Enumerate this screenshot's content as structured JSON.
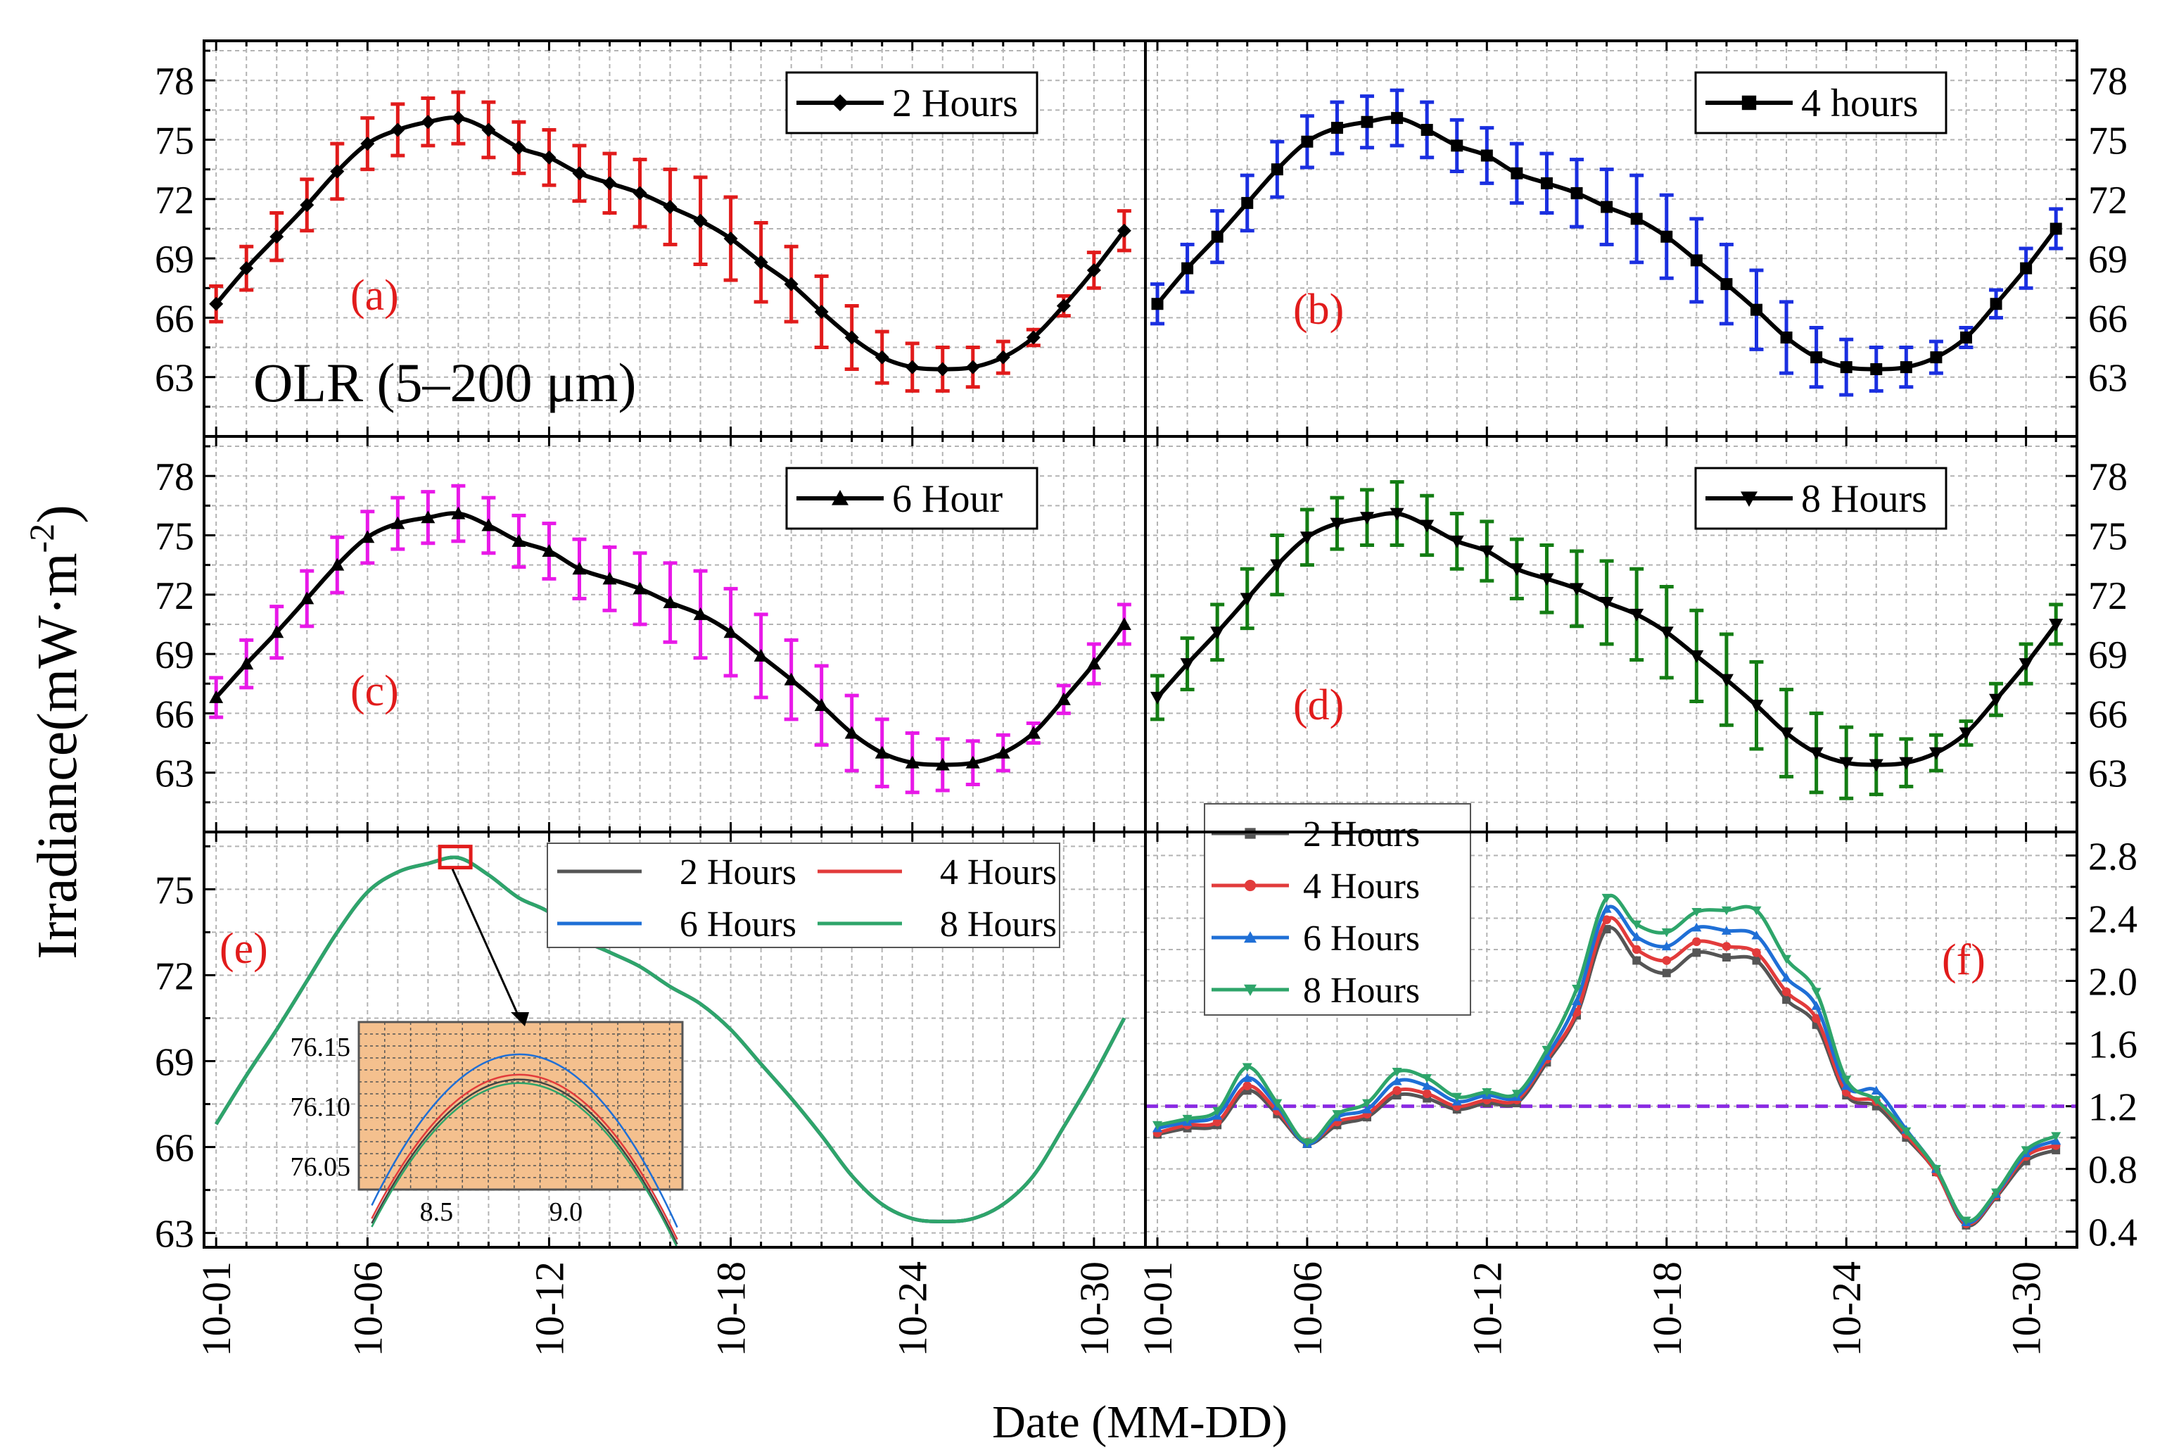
{
  "figure": {
    "ylabel": "Irradiance(mW·m",
    "ylabel_sup": "-2",
    "ylabel_close": ")",
    "xlabel": "Date (MM-DD)",
    "olr_label": "OLR (5–200 μm)",
    "x_ticks": [
      "10-01",
      "10-06",
      "10-12",
      "10-18",
      "10-24",
      "10-30"
    ]
  },
  "chart_data": [
    {
      "panel": "a",
      "type": "line",
      "panel_label": "(a)",
      "legend": "2 Hours",
      "marker": "diamond",
      "errorbar_color": "#e11b1b",
      "line_color": "#000000",
      "ylim": [
        60,
        80
      ],
      "yticks": [
        63,
        66,
        69,
        72,
        75,
        78
      ],
      "axis_side": "left",
      "x_days": [
        1,
        2,
        3,
        4,
        5,
        6,
        7,
        8,
        9,
        10,
        11,
        12,
        13,
        14,
        15,
        16,
        17,
        18,
        19,
        20,
        21,
        22,
        23,
        24,
        25,
        26,
        27,
        28,
        29,
        30,
        31
      ],
      "values": [
        66.7,
        68.5,
        70.1,
        71.7,
        73.4,
        74.8,
        75.5,
        75.9,
        76.1,
        75.5,
        74.6,
        74.1,
        73.3,
        72.8,
        72.3,
        71.6,
        70.9,
        70.0,
        68.8,
        67.7,
        66.3,
        65.0,
        64.0,
        63.5,
        63.4,
        63.5,
        64.0,
        65.0,
        66.6,
        68.4,
        70.4
      ],
      "errors": [
        0.9,
        1.1,
        1.2,
        1.3,
        1.4,
        1.3,
        1.3,
        1.2,
        1.3,
        1.4,
        1.3,
        1.4,
        1.4,
        1.5,
        1.7,
        1.9,
        2.2,
        2.1,
        2.0,
        1.9,
        1.8,
        1.6,
        1.3,
        1.2,
        1.1,
        1.0,
        0.8,
        0.4,
        0.5,
        0.9,
        1.0
      ]
    },
    {
      "panel": "b",
      "type": "line",
      "panel_label": "(b)",
      "legend": "4 hours",
      "marker": "square",
      "errorbar_color": "#1a2fe0",
      "line_color": "#000000",
      "ylim": [
        60,
        80
      ],
      "yticks": [
        63,
        66,
        69,
        72,
        75,
        78
      ],
      "axis_side": "right",
      "x_days": [
        1,
        2,
        3,
        4,
        5,
        6,
        7,
        8,
        9,
        10,
        11,
        12,
        13,
        14,
        15,
        16,
        17,
        18,
        19,
        20,
        21,
        22,
        23,
        24,
        25,
        26,
        27,
        28,
        29,
        30,
        31
      ],
      "values": [
        66.7,
        68.5,
        70.1,
        71.8,
        73.5,
        74.9,
        75.6,
        75.9,
        76.1,
        75.5,
        74.7,
        74.2,
        73.3,
        72.8,
        72.3,
        71.6,
        71.0,
        70.1,
        68.9,
        67.7,
        66.4,
        65.0,
        64.0,
        63.5,
        63.4,
        63.5,
        64.0,
        65.0,
        66.7,
        68.5,
        70.5
      ],
      "errors": [
        1.0,
        1.2,
        1.3,
        1.4,
        1.4,
        1.3,
        1.3,
        1.3,
        1.4,
        1.4,
        1.3,
        1.4,
        1.5,
        1.5,
        1.7,
        1.9,
        2.2,
        2.1,
        2.1,
        2.0,
        2.0,
        1.8,
        1.5,
        1.4,
        1.1,
        1.0,
        0.8,
        0.5,
        0.7,
        1.0,
        1.0
      ]
    },
    {
      "panel": "c",
      "type": "line",
      "panel_label": "(c)",
      "legend": "6 Hour",
      "marker": "triangle",
      "errorbar_color": "#e819e8",
      "line_color": "#000000",
      "ylim": [
        60,
        80
      ],
      "yticks": [
        63,
        66,
        69,
        72,
        75,
        78
      ],
      "axis_side": "left",
      "x_days": [
        1,
        2,
        3,
        4,
        5,
        6,
        7,
        8,
        9,
        10,
        11,
        12,
        13,
        14,
        15,
        16,
        17,
        18,
        19,
        20,
        21,
        22,
        23,
        24,
        25,
        26,
        27,
        28,
        29,
        30,
        31
      ],
      "values": [
        66.8,
        68.5,
        70.1,
        71.8,
        73.5,
        74.9,
        75.6,
        75.9,
        76.1,
        75.5,
        74.7,
        74.2,
        73.3,
        72.8,
        72.3,
        71.6,
        71.0,
        70.1,
        68.9,
        67.7,
        66.4,
        65.0,
        64.0,
        63.5,
        63.4,
        63.5,
        64.0,
        65.0,
        66.7,
        68.5,
        70.5
      ],
      "errors": [
        1.0,
        1.2,
        1.3,
        1.4,
        1.4,
        1.3,
        1.3,
        1.3,
        1.4,
        1.4,
        1.3,
        1.4,
        1.5,
        1.6,
        1.8,
        2.0,
        2.2,
        2.2,
        2.1,
        2.0,
        2.0,
        1.9,
        1.7,
        1.5,
        1.3,
        1.1,
        0.9,
        0.5,
        0.7,
        1.0,
        1.0
      ]
    },
    {
      "panel": "d",
      "type": "line",
      "panel_label": "(d)",
      "legend": "8 Hours",
      "marker": "triangle-down",
      "errorbar_color": "#137d13",
      "line_color": "#000000",
      "ylim": [
        60,
        80
      ],
      "yticks": [
        63,
        66,
        69,
        72,
        75,
        78
      ],
      "axis_side": "right",
      "x_days": [
        1,
        2,
        3,
        4,
        5,
        6,
        7,
        8,
        9,
        10,
        11,
        12,
        13,
        14,
        15,
        16,
        17,
        18,
        19,
        20,
        21,
        22,
        23,
        24,
        25,
        26,
        27,
        28,
        29,
        30,
        31
      ],
      "values": [
        66.8,
        68.5,
        70.1,
        71.8,
        73.5,
        74.9,
        75.6,
        75.9,
        76.1,
        75.5,
        74.7,
        74.2,
        73.3,
        72.8,
        72.3,
        71.6,
        71.0,
        70.1,
        68.9,
        67.7,
        66.4,
        65.0,
        64.0,
        63.5,
        63.4,
        63.5,
        64.0,
        65.0,
        66.7,
        68.5,
        70.5
      ],
      "errors": [
        1.1,
        1.3,
        1.4,
        1.5,
        1.5,
        1.4,
        1.3,
        1.4,
        1.6,
        1.5,
        1.4,
        1.5,
        1.5,
        1.7,
        1.9,
        2.1,
        2.3,
        2.3,
        2.3,
        2.3,
        2.2,
        2.2,
        2.0,
        1.8,
        1.5,
        1.2,
        0.9,
        0.6,
        0.8,
        1.0,
        1.0
      ]
    },
    {
      "panel": "e",
      "type": "line",
      "panel_label": "(e)",
      "ylim": [
        62.5,
        77
      ],
      "yticks": [
        63,
        66,
        69,
        72,
        75
      ],
      "axis_side": "left",
      "x_days": [
        1,
        2,
        3,
        4,
        5,
        6,
        7,
        8,
        9,
        10,
        11,
        12,
        13,
        14,
        15,
        16,
        17,
        18,
        19,
        20,
        21,
        22,
        23,
        24,
        25,
        26,
        27,
        28,
        29,
        30,
        31
      ],
      "values": [
        66.8,
        68.5,
        70.1,
        71.8,
        73.5,
        74.9,
        75.6,
        75.9,
        76.1,
        75.5,
        74.7,
        74.2,
        73.3,
        72.8,
        72.3,
        71.6,
        71.0,
        70.1,
        68.9,
        67.7,
        66.4,
        65.0,
        64.0,
        63.5,
        63.4,
        63.5,
        64.0,
        65.0,
        66.7,
        68.5,
        70.5
      ],
      "series": [
        {
          "name": "2 Hours",
          "color": "#555555"
        },
        {
          "name": "4 Hours",
          "color": "#e23b3b"
        },
        {
          "name": "6 Hours",
          "color": "#1f6fd6"
        },
        {
          "name": "8 Hours",
          "color": "#2ea56a"
        }
      ],
      "inset": {
        "xlim": [
          8.2,
          9.45
        ],
        "ylim": [
          76.03,
          76.17
        ],
        "xticks": [
          {
            "v": 8.5,
            "label": "8.5"
          },
          {
            "v": 9.0,
            "label": "9.0"
          }
        ],
        "yticks": [
          {
            "v": 76.05,
            "label": "76.05"
          },
          {
            "v": 76.1,
            "label": "76.10"
          },
          {
            "v": 76.15,
            "label": "76.15"
          }
        ],
        "curves": [
          {
            "name": "2 Hours",
            "color": "#444444",
            "peak": 76.122
          },
          {
            "name": "4 Hours",
            "color": "#e23b3b",
            "peak": 76.126
          },
          {
            "name": "6 Hours",
            "color": "#1f6fd6",
            "peak": 76.143
          },
          {
            "name": "8 Hours",
            "color": "#2ea56a",
            "peak": 76.119
          }
        ],
        "background": "#f4c08e"
      }
    },
    {
      "panel": "f",
      "type": "line",
      "panel_label": "(f)",
      "ylim": [
        0.3,
        2.95
      ],
      "yticks": [
        0.4,
        0.8,
        1.2,
        1.6,
        2.0,
        2.4,
        2.8
      ],
      "axis_side": "right",
      "threshold": 1.2,
      "threshold_color": "#8a2be2",
      "x_days": [
        1,
        2,
        3,
        4,
        5,
        6,
        7,
        8,
        9,
        10,
        11,
        12,
        13,
        14,
        15,
        16,
        17,
        18,
        19,
        20,
        21,
        22,
        23,
        24,
        25,
        26,
        27,
        28,
        29,
        30,
        31
      ],
      "series": [
        {
          "name": "2 Hours",
          "color": "#555555",
          "marker": "square",
          "values": [
            1.02,
            1.06,
            1.08,
            1.3,
            1.15,
            0.96,
            1.08,
            1.13,
            1.27,
            1.25,
            1.18,
            1.22,
            1.22,
            1.48,
            1.78,
            2.33,
            2.13,
            2.05,
            2.18,
            2.15,
            2.13,
            1.88,
            1.72,
            1.27,
            1.2,
            1.0,
            0.78,
            0.44,
            0.62,
            0.85,
            0.92
          ]
        },
        {
          "name": "4 Hours",
          "color": "#e23b3b",
          "marker": "circle",
          "values": [
            1.03,
            1.08,
            1.1,
            1.33,
            1.17,
            0.97,
            1.1,
            1.15,
            1.3,
            1.28,
            1.2,
            1.24,
            1.24,
            1.5,
            1.8,
            2.39,
            2.2,
            2.13,
            2.25,
            2.22,
            2.18,
            1.93,
            1.76,
            1.29,
            1.23,
            1.02,
            0.78,
            0.45,
            0.63,
            0.88,
            0.95
          ]
        },
        {
          "name": "6 Hours",
          "color": "#1f6fd6",
          "marker": "triangle",
          "values": [
            1.06,
            1.1,
            1.14,
            1.38,
            1.2,
            0.96,
            1.13,
            1.18,
            1.36,
            1.33,
            1.23,
            1.27,
            1.26,
            1.52,
            1.87,
            2.46,
            2.28,
            2.22,
            2.34,
            2.32,
            2.29,
            2.02,
            1.84,
            1.33,
            1.3,
            1.05,
            0.8,
            0.46,
            0.64,
            0.9,
            0.98
          ]
        },
        {
          "name": "8 Hours",
          "color": "#2ea56a",
          "marker": "triangle-down",
          "values": [
            1.08,
            1.12,
            1.17,
            1.45,
            1.22,
            0.97,
            1.15,
            1.22,
            1.42,
            1.38,
            1.26,
            1.29,
            1.28,
            1.56,
            1.95,
            2.53,
            2.36,
            2.31,
            2.44,
            2.45,
            2.45,
            2.14,
            1.93,
            1.37,
            1.24,
            1.04,
            0.8,
            0.47,
            0.65,
            0.92,
            1.01
          ]
        }
      ]
    }
  ]
}
